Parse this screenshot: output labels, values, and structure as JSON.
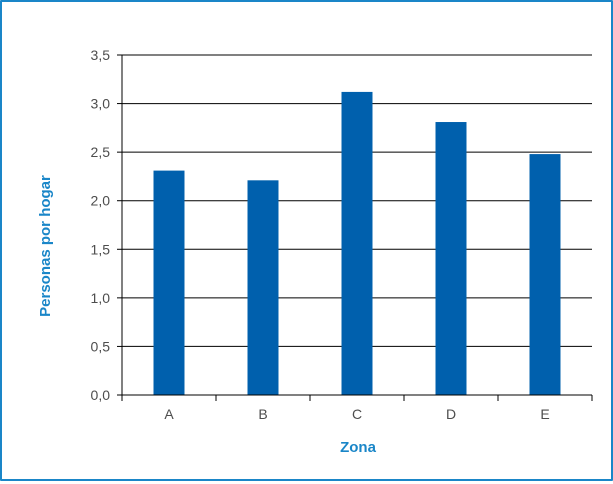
{
  "chart_data": {
    "type": "bar",
    "categories": [
      "A",
      "B",
      "C",
      "D",
      "E"
    ],
    "values": [
      2.31,
      2.21,
      3.12,
      2.81,
      2.48
    ],
    "xlabel": "Zona",
    "ylabel": "Personas por hogar",
    "ylim": [
      0,
      3.5
    ],
    "yticks": [
      "0,0",
      "0,5",
      "1,0",
      "1,5",
      "2,0",
      "2,5",
      "3,0",
      "3,5"
    ],
    "grid": true,
    "legend": "none",
    "colors": {
      "bar": "#0060ad",
      "axis_title": "#1a86c8",
      "frame": "#1a86c8",
      "gridline": "#000000"
    }
  }
}
